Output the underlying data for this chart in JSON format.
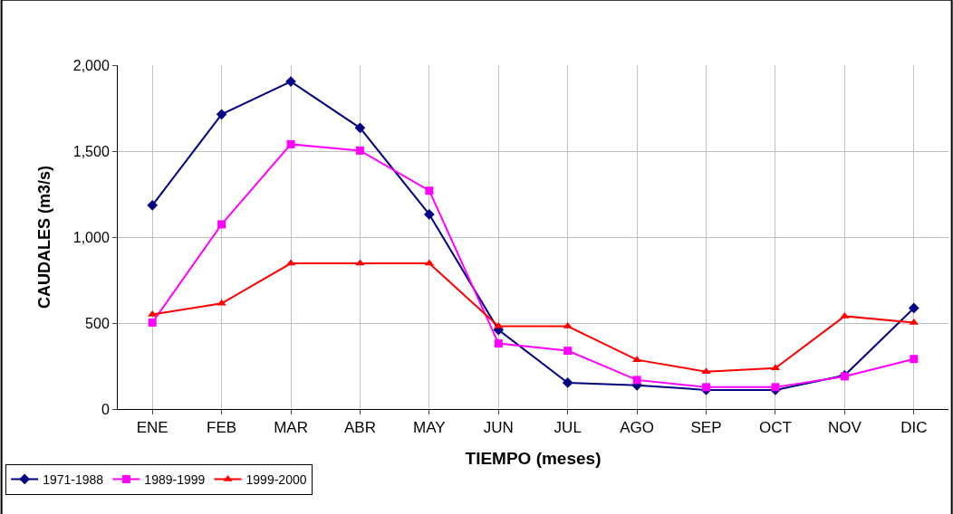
{
  "chart_data": {
    "type": "line",
    "xlabel": "TIEMPO (meses)",
    "ylabel": "CAUDALES (m3/s)",
    "categories": [
      "ENE",
      "FEB",
      "MAR",
      "ABR",
      "MAY",
      "JUN",
      "JUL",
      "AGO",
      "SEP",
      "OCT",
      "NOV",
      "DIC"
    ],
    "series": [
      {
        "name": "1971-1988",
        "color": "#000080",
        "marker": "diamond",
        "values": [
          1185,
          1714,
          1905,
          1635,
          1132,
          460,
          153,
          138,
          111,
          111,
          196,
          587
        ]
      },
      {
        "name": "1989-1999",
        "color": "#ff00ff",
        "marker": "square",
        "values": [
          503,
          1074,
          1540,
          1503,
          1270,
          381,
          339,
          169,
          127,
          127,
          190,
          291
        ]
      },
      {
        "name": "1999-2000",
        "color": "#ff0000",
        "marker": "triangle",
        "values": [
          550,
          614,
          847,
          847,
          847,
          481,
          481,
          286,
          217,
          238,
          540,
          503
        ]
      }
    ],
    "ylim": [
      0,
      2000
    ],
    "yticks": [
      0,
      {
        "value": 500,
        "label": "500"
      },
      {
        "value": 1000,
        "label": "1,000"
      },
      {
        "value": 1500,
        "label": "1,500"
      },
      {
        "value": 2000,
        "label": "2,000"
      }
    ],
    "grid": true,
    "legend": "bottom left",
    "line_style": "solid"
  }
}
